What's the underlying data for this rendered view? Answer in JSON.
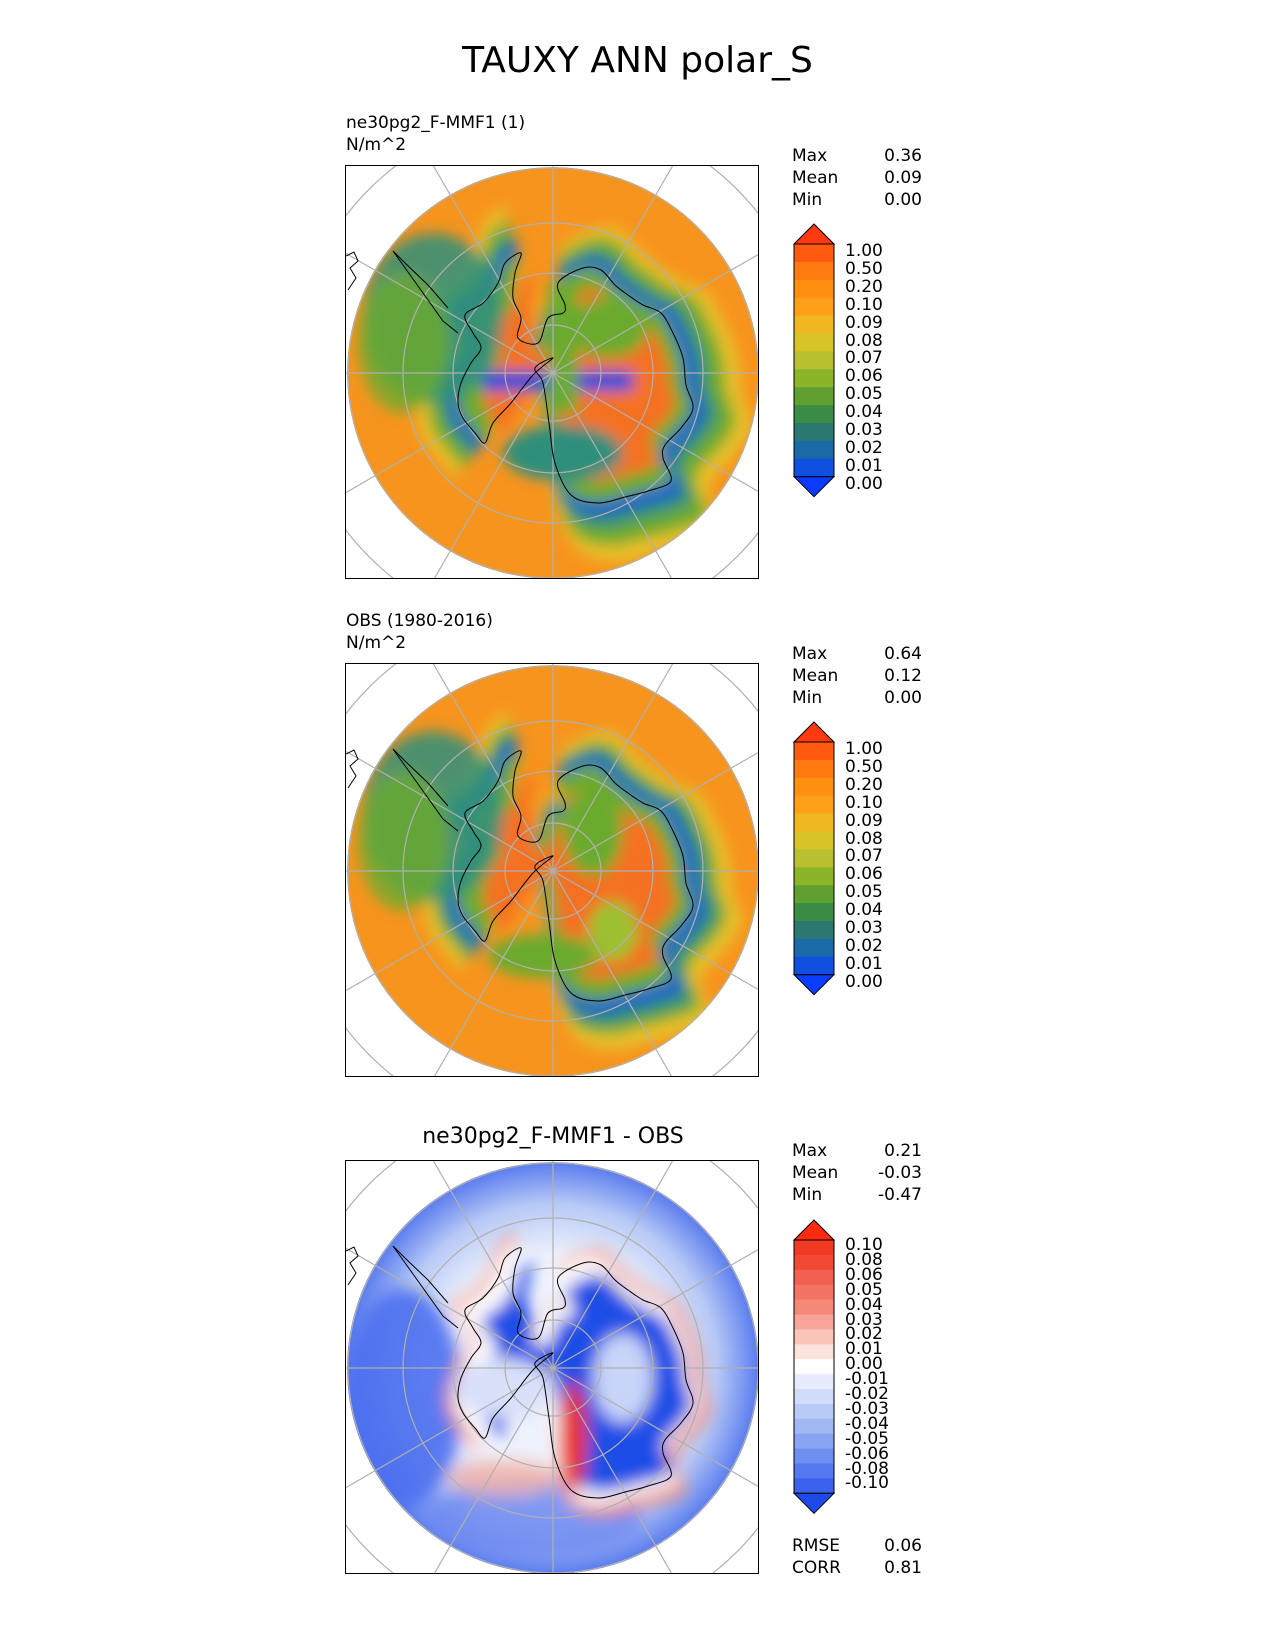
{
  "title": "TAUXY ANN polar_S",
  "colors": {
    "ocean_orange": "#f7941d",
    "land_orange": "#f57120",
    "green": "#6aab2e",
    "teal": "#2f8f7c",
    "blue": "#1450d8",
    "diff_blue": "#1a4de6",
    "diff_red": "#e8321e",
    "grid": "#b0b0b0"
  },
  "panels": [
    {
      "name": "model",
      "title": "ne30pg2_F-MMF1 (1)",
      "units": "N/m^2",
      "stats": [
        {
          "label": "Max",
          "value": "0.36"
        },
        {
          "label": "Mean",
          "value": "0.09"
        },
        {
          "label": "Min",
          "value": "0.00"
        }
      ],
      "colorbar": [
        "1.00",
        "0.50",
        "0.20",
        "0.10",
        "0.09",
        "0.08",
        "0.07",
        "0.06",
        "0.05",
        "0.04",
        "0.03",
        "0.02",
        "0.01",
        "0.00"
      ]
    },
    {
      "name": "obs",
      "title": "OBS (1980-2016)",
      "units": "N/m^2",
      "stats": [
        {
          "label": "Max",
          "value": "0.64"
        },
        {
          "label": "Mean",
          "value": "0.12"
        },
        {
          "label": "Min",
          "value": "0.00"
        }
      ],
      "colorbar": [
        "1.00",
        "0.50",
        "0.20",
        "0.10",
        "0.09",
        "0.08",
        "0.07",
        "0.06",
        "0.05",
        "0.04",
        "0.03",
        "0.02",
        "0.01",
        "0.00"
      ]
    },
    {
      "name": "diff",
      "title": "ne30pg2_F-MMF1 - OBS",
      "stats": [
        {
          "label": "Max",
          "value": "0.21"
        },
        {
          "label": "Mean",
          "value": "-0.03"
        },
        {
          "label": "Min",
          "value": "-0.47"
        }
      ],
      "colorbar": [
        "0.10",
        "0.08",
        "0.06",
        "0.05",
        "0.04",
        "0.03",
        "0.02",
        "0.01",
        "0.00",
        "-0.01",
        "-0.02",
        "-0.03",
        "-0.04",
        "-0.05",
        "-0.06",
        "-0.08",
        "-0.10"
      ],
      "metrics": [
        {
          "label": "RMSE",
          "value": "0.06"
        },
        {
          "label": "CORR",
          "value": "0.81"
        }
      ]
    }
  ]
}
